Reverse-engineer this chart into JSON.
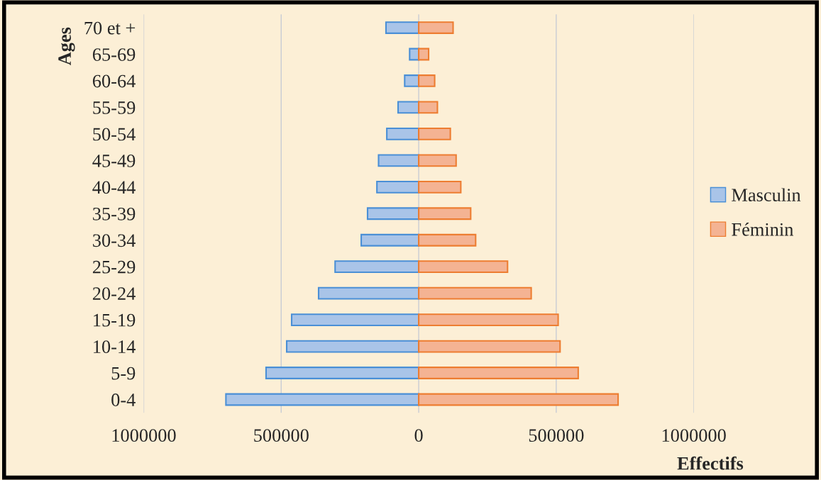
{
  "chart_data": {
    "type": "bar",
    "orientation": "horizontal",
    "stacked": true,
    "xlabel": "Effectifs",
    "ylabel": "Ages",
    "categories": [
      "70 et +",
      "65-69",
      "60-64",
      "55-59",
      "50-54",
      "45-49",
      "40-44",
      "35-39",
      "30-34",
      "25-29",
      "20-24",
      "15-19",
      "10-14",
      "5-9",
      "0-4"
    ],
    "series": [
      {
        "name": "Masculin",
        "color": "#a9c4e8",
        "values": [
          -119000,
          -33000,
          -51000,
          -75000,
          -116000,
          -146000,
          -152000,
          -186000,
          -209000,
          -304000,
          -364000,
          -462000,
          -480000,
          -555000,
          -701000
        ]
      },
      {
        "name": "Féminin",
        "color": "#f4b393",
        "values": [
          125000,
          36000,
          58000,
          68000,
          115000,
          136000,
          153000,
          189000,
          207000,
          323000,
          409000,
          507000,
          514000,
          580000,
          725000
        ]
      }
    ],
    "xlim": [
      -1000000,
      1000000
    ],
    "xticks": [
      {
        "value": -1000000,
        "label": "1000000"
      },
      {
        "value": -500000,
        "label": "500000"
      },
      0,
      500000,
      1000000
    ],
    "grid": "x",
    "legend": "right"
  }
}
